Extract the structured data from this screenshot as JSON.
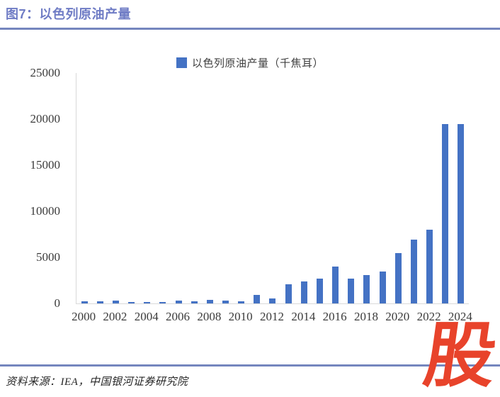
{
  "figure": {
    "title": "图7：以色列原油产量",
    "source": "资料来源：IEA，中国银河证券研究院",
    "logo_text": "股"
  },
  "colors": {
    "title_text": "#6F7CC5",
    "rule_line": "#7586BE",
    "bar_fill": "#4472C4",
    "axis_line": "#D9D9D9",
    "tick_text": "#3B3B3B",
    "logo_red": "#E8432B"
  },
  "chart_data": {
    "type": "bar",
    "title": "",
    "legend": [
      "以色列原油产量（千焦耳）"
    ],
    "legend_position": "top-center",
    "grid": false,
    "x": [
      2000,
      2001,
      2002,
      2003,
      2004,
      2005,
      2006,
      2007,
      2008,
      2009,
      2010,
      2011,
      2012,
      2013,
      2014,
      2015,
      2016,
      2017,
      2018,
      2019,
      2020,
      2021,
      2022,
      2023,
      2024
    ],
    "values": [
      200,
      220,
      280,
      150,
      150,
      150,
      320,
      230,
      360,
      330,
      210,
      900,
      560,
      2100,
      2400,
      2700,
      4000,
      2700,
      3100,
      3500,
      5500,
      6900,
      8000,
      19500,
      19500
    ],
    "ylim": [
      0,
      25000
    ],
    "yticks": [
      0,
      5000,
      10000,
      15000,
      20000,
      25000
    ],
    "xticks": [
      2000,
      2002,
      2004,
      2006,
      2008,
      2010,
      2012,
      2014,
      2016,
      2018,
      2020,
      2022,
      2024
    ],
    "xlabel": "",
    "ylabel": ""
  }
}
